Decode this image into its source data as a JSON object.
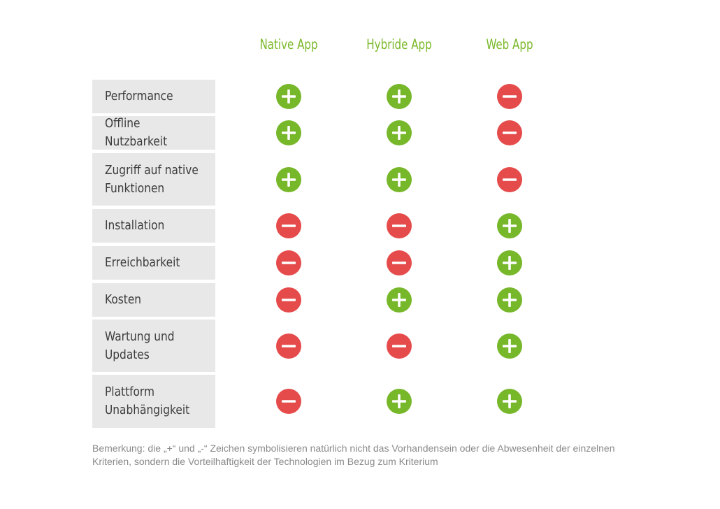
{
  "columns": [
    "Native App",
    "Hybride App",
    "Web App"
  ],
  "rows": [
    {
      "label": "Performance",
      "values": [
        "+",
        "+",
        "-"
      ]
    },
    {
      "label": "Offline Nutzbarkeit",
      "values": [
        "+",
        "+",
        "-"
      ]
    },
    {
      "label": "Zugriff auf native\nFunktionen",
      "values": [
        "+",
        "+",
        "-"
      ]
    },
    {
      "label": "Installation",
      "values": [
        "-",
        "-",
        "+"
      ]
    },
    {
      "label": "Erreichbarkeit",
      "values": [
        "-",
        "-",
        "+"
      ]
    },
    {
      "label": "Kosten",
      "values": [
        "-",
        "+",
        "+"
      ]
    },
    {
      "label": "Wartung und\nUpdates",
      "values": [
        "-",
        "-",
        "+"
      ]
    },
    {
      "label": "Plattform\nUnabhängigkeit",
      "values": [
        "-",
        "+",
        "+"
      ]
    }
  ],
  "note": "Bemerkung: die „+“ und „-“ Zeichen symbolisieren natürlich nicht das Vorhandensein oder die Abwesenheit der einzelnen Kriterien, sondern die Vorteilhaftigkeit der Technologien im Bezug zum Kriterium",
  "colors": {
    "plus": "#77b72a",
    "minus": "#e64b4b",
    "header": "#7ab829",
    "label_bg": "#e8e8e8"
  }
}
